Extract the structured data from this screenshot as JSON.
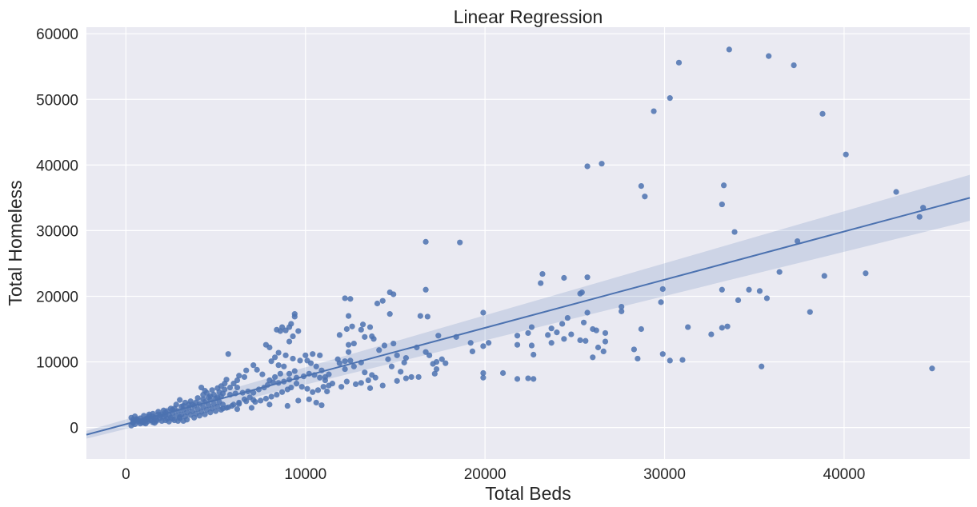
{
  "chart_data": {
    "type": "scatter",
    "title": "Linear Regression",
    "xlabel": "Total Beds",
    "ylabel": "Total Homeless",
    "xlim": [
      -2200,
      47000
    ],
    "ylim": [
      -4800,
      61000
    ],
    "xticks": [
      0,
      10000,
      20000,
      30000,
      40000
    ],
    "yticks": [
      0,
      10000,
      20000,
      30000,
      40000,
      50000,
      60000
    ],
    "grid": true,
    "colors": {
      "background": "#eaeaf2",
      "grid": "#ffffff",
      "points": "#4c72b0",
      "line": "#4c72b0",
      "band": "#4c72b0"
    },
    "regression": {
      "x": [
        -2200,
        47000
      ],
      "y": [
        -1100,
        35000
      ],
      "ci_lower": [
        -1700,
        31500
      ],
      "ci_upper": [
        -500,
        38500
      ]
    },
    "points": [
      [
        26500,
        40200
      ],
      [
        25700,
        39800
      ],
      [
        28700,
        36800
      ],
      [
        28900,
        35200
      ],
      [
        29400,
        48200
      ],
      [
        30300,
        50200
      ],
      [
        30800,
        55600
      ],
      [
        33600,
        57600
      ],
      [
        35800,
        56600
      ],
      [
        37200,
        55200
      ],
      [
        38800,
        47800
      ],
      [
        40100,
        41600
      ],
      [
        42900,
        35900
      ],
      [
        44200,
        32100
      ],
      [
        44400,
        33500
      ],
      [
        44900,
        9000
      ],
      [
        33300,
        36900
      ],
      [
        33200,
        34000
      ],
      [
        33900,
        29800
      ],
      [
        37400,
        28400
      ],
      [
        36400,
        23700
      ],
      [
        38900,
        23100
      ],
      [
        41200,
        23500
      ],
      [
        29900,
        21100
      ],
      [
        33200,
        21000
      ],
      [
        34700,
        21000
      ],
      [
        35300,
        20800
      ],
      [
        35700,
        19700
      ],
      [
        34100,
        19400
      ],
      [
        38100,
        17600
      ],
      [
        29800,
        19100
      ],
      [
        31300,
        15300
      ],
      [
        33200,
        15200
      ],
      [
        33500,
        15400
      ],
      [
        32600,
        14200
      ],
      [
        28700,
        15000
      ],
      [
        29900,
        11200
      ],
      [
        30300,
        10200
      ],
      [
        31000,
        10300
      ],
      [
        28500,
        10500
      ],
      [
        28300,
        11900
      ],
      [
        35400,
        9300
      ],
      [
        16700,
        28300
      ],
      [
        18600,
        28200
      ],
      [
        23200,
        23400
      ],
      [
        23100,
        22000
      ],
      [
        24400,
        22800
      ],
      [
        25700,
        22900
      ],
      [
        25300,
        20400
      ],
      [
        25400,
        20600
      ],
      [
        25700,
        17500
      ],
      [
        27600,
        18400
      ],
      [
        27600,
        17700
      ],
      [
        25500,
        16000
      ],
      [
        26000,
        15000
      ],
      [
        26200,
        14800
      ],
      [
        26700,
        14400
      ],
      [
        24600,
        16700
      ],
      [
        24300,
        15800
      ],
      [
        23700,
        15100
      ],
      [
        24000,
        14500
      ],
      [
        23500,
        14100
      ],
      [
        24800,
        14200
      ],
      [
        25300,
        13300
      ],
      [
        25600,
        13200
      ],
      [
        24400,
        13500
      ],
      [
        23700,
        12900
      ],
      [
        22400,
        14400
      ],
      [
        22600,
        15300
      ],
      [
        22700,
        11100
      ],
      [
        22600,
        12500
      ],
      [
        21800,
        14000
      ],
      [
        21800,
        12600
      ],
      [
        22400,
        7500
      ],
      [
        21800,
        7400
      ],
      [
        21000,
        8300
      ],
      [
        22700,
        7400
      ],
      [
        19900,
        17500
      ],
      [
        19900,
        12400
      ],
      [
        20200,
        12900
      ],
      [
        19300,
        11600
      ],
      [
        19200,
        12900
      ],
      [
        19900,
        8300
      ],
      [
        19900,
        7600
      ],
      [
        26300,
        12200
      ],
      [
        26000,
        10700
      ],
      [
        26600,
        11600
      ],
      [
        26700,
        13100
      ],
      [
        16700,
        21000
      ],
      [
        16800,
        16900
      ],
      [
        16400,
        17000
      ],
      [
        17400,
        14000
      ],
      [
        16700,
        11500
      ],
      [
        16900,
        11000
      ],
      [
        17300,
        10000
      ],
      [
        17100,
        9700
      ],
      [
        17600,
        10400
      ],
      [
        17800,
        9800
      ],
      [
        17300,
        8900
      ],
      [
        17200,
        8200
      ],
      [
        18400,
        13800
      ],
      [
        16200,
        12200
      ],
      [
        15600,
        10600
      ],
      [
        15500,
        9900
      ],
      [
        15100,
        11000
      ],
      [
        15300,
        8500
      ],
      [
        15600,
        7500
      ],
      [
        15900,
        7700
      ],
      [
        16300,
        7700
      ],
      [
        15100,
        7100
      ],
      [
        14800,
        9300
      ],
      [
        14600,
        10400
      ],
      [
        14900,
        12800
      ],
      [
        14400,
        12500
      ],
      [
        14100,
        11800
      ],
      [
        14700,
        20600
      ],
      [
        14900,
        20300
      ],
      [
        14300,
        19300
      ],
      [
        14000,
        18900
      ],
      [
        14700,
        17300
      ],
      [
        12200,
        19700
      ],
      [
        12500,
        19600
      ],
      [
        12400,
        17000
      ],
      [
        11900,
        14100
      ],
      [
        12300,
        15000
      ],
      [
        12600,
        15400
      ],
      [
        13100,
        14900
      ],
      [
        13200,
        15700
      ],
      [
        13600,
        15300
      ],
      [
        13300,
        13800
      ],
      [
        13800,
        13500
      ],
      [
        13700,
        13900
      ],
      [
        12700,
        12800
      ],
      [
        12400,
        12600
      ],
      [
        12400,
        11500
      ],
      [
        11800,
        10400
      ],
      [
        11900,
        9800
      ],
      [
        12200,
        10100
      ],
      [
        12500,
        10200
      ],
      [
        12700,
        9300
      ],
      [
        12200,
        8900
      ],
      [
        13100,
        9900
      ],
      [
        13300,
        8400
      ],
      [
        13700,
        8000
      ],
      [
        13900,
        7600
      ],
      [
        13500,
        7200
      ],
      [
        13100,
        6800
      ],
      [
        14300,
        6400
      ],
      [
        13600,
        6000
      ],
      [
        12800,
        6600
      ],
      [
        12300,
        7000
      ],
      [
        12000,
        6200
      ],
      [
        11500,
        6700
      ],
      [
        11100,
        7200
      ],
      [
        11300,
        8100
      ],
      [
        10900,
        8700
      ],
      [
        10600,
        9300
      ],
      [
        10300,
        9800
      ],
      [
        10100,
        10200
      ],
      [
        10800,
        11000
      ],
      [
        10400,
        11200
      ],
      [
        10000,
        11000
      ],
      [
        9400,
        17300
      ],
      [
        9400,
        16900
      ],
      [
        9200,
        15800
      ],
      [
        9100,
        15300
      ],
      [
        8700,
        15300
      ],
      [
        8600,
        14700
      ],
      [
        8900,
        14800
      ],
      [
        9600,
        14700
      ],
      [
        9300,
        13900
      ],
      [
        9100,
        13100
      ],
      [
        8400,
        14900
      ],
      [
        7800,
        12600
      ],
      [
        8000,
        12200
      ],
      [
        8500,
        11400
      ],
      [
        8900,
        11000
      ],
      [
        8300,
        10700
      ],
      [
        8100,
        10100
      ],
      [
        8500,
        9500
      ],
      [
        8800,
        9300
      ],
      [
        9300,
        10500
      ],
      [
        9700,
        10200
      ],
      [
        9400,
        8600
      ],
      [
        9100,
        8200
      ],
      [
        8600,
        8200
      ],
      [
        8300,
        7700
      ],
      [
        8000,
        7200
      ],
      [
        7600,
        8100
      ],
      [
        7300,
        8800
      ],
      [
        7100,
        9500
      ],
      [
        6700,
        8700
      ],
      [
        6600,
        7700
      ],
      [
        6300,
        7900
      ],
      [
        6200,
        7200
      ],
      [
        5700,
        11200
      ],
      [
        6000,
        6700
      ],
      [
        6200,
        6100
      ],
      [
        5600,
        7300
      ],
      [
        5500,
        6700
      ],
      [
        5300,
        6300
      ],
      [
        5100,
        6000
      ],
      [
        4800,
        5700
      ],
      [
        4500,
        5300
      ],
      [
        4200,
        6100
      ],
      [
        4300,
        5000
      ],
      [
        4700,
        4800
      ],
      [
        5100,
        4600
      ],
      [
        5400,
        5200
      ],
      [
        5800,
        5000
      ],
      [
        6100,
        5200
      ],
      [
        6500,
        5300
      ],
      [
        6800,
        5500
      ],
      [
        7100,
        5300
      ],
      [
        7400,
        5800
      ],
      [
        7700,
        6100
      ],
      [
        7900,
        6500
      ],
      [
        8200,
        6900
      ],
      [
        8500,
        6800
      ],
      [
        8800,
        7000
      ],
      [
        9100,
        7300
      ],
      [
        9500,
        7600
      ],
      [
        9900,
        7800
      ],
      [
        10200,
        8200
      ],
      [
        10500,
        8000
      ],
      [
        10800,
        7600
      ],
      [
        11100,
        7700
      ],
      [
        11300,
        6400
      ],
      [
        11000,
        6200
      ],
      [
        10700,
        5700
      ],
      [
        10400,
        5400
      ],
      [
        10100,
        5900
      ],
      [
        9800,
        6200
      ],
      [
        9500,
        6700
      ],
      [
        9200,
        6100
      ],
      [
        9000,
        5800
      ],
      [
        8700,
        5400
      ],
      [
        8400,
        5000
      ],
      [
        8100,
        4700
      ],
      [
        7800,
        4400
      ],
      [
        7500,
        4100
      ],
      [
        7200,
        3900
      ],
      [
        6900,
        4600
      ],
      [
        6600,
        4300
      ],
      [
        6300,
        3800
      ],
      [
        6000,
        3500
      ],
      [
        5700,
        3100
      ],
      [
        5400,
        2900
      ],
      [
        6200,
        2800
      ],
      [
        7000,
        3000
      ],
      [
        8000,
        3500
      ],
      [
        9000,
        3300
      ],
      [
        9600,
        4100
      ],
      [
        10200,
        4300
      ],
      [
        10600,
        3800
      ],
      [
        10900,
        3400
      ],
      [
        11200,
        5500
      ],
      [
        300,
        300
      ],
      [
        400,
        700
      ],
      [
        500,
        1100
      ],
      [
        300,
        1500
      ],
      [
        400,
        1200
      ],
      [
        500,
        1700
      ],
      [
        600,
        1300
      ],
      [
        700,
        900
      ],
      [
        800,
        600
      ],
      [
        900,
        1000
      ],
      [
        1000,
        700
      ],
      [
        1100,
        1300
      ],
      [
        1200,
        900
      ],
      [
        1300,
        1700
      ],
      [
        1400,
        1100
      ],
      [
        1500,
        800
      ],
      [
        1600,
        1500
      ],
      [
        1700,
        1200
      ],
      [
        1800,
        2000
      ],
      [
        1900,
        1400
      ],
      [
        2000,
        1000
      ],
      [
        2100,
        1700
      ],
      [
        2200,
        2300
      ],
      [
        2300,
        1300
      ],
      [
        2400,
        1900
      ],
      [
        2500,
        1500
      ],
      [
        2600,
        2200
      ],
      [
        2700,
        1100
      ],
      [
        2800,
        1800
      ],
      [
        2900,
        2500
      ],
      [
        3000,
        1400
      ],
      [
        3100,
        2000
      ],
      [
        3200,
        2700
      ],
      [
        3300,
        1700
      ],
      [
        3400,
        2300
      ],
      [
        3500,
        3000
      ],
      [
        3600,
        1900
      ],
      [
        3700,
        2500
      ],
      [
        3800,
        3300
      ],
      [
        3900,
        2100
      ],
      [
        4000,
        2800
      ],
      [
        4100,
        3600
      ],
      [
        4200,
        2400
      ],
      [
        4300,
        3100
      ],
      [
        4400,
        3900
      ],
      [
        4500,
        2700
      ],
      [
        4600,
        3400
      ],
      [
        4700,
        4200
      ],
      [
        4800,
        2900
      ],
      [
        4900,
        3600
      ],
      [
        5000,
        4400
      ],
      [
        5100,
        3200
      ],
      [
        5200,
        3900
      ],
      [
        5300,
        4700
      ],
      [
        5400,
        3500
      ],
      [
        3000,
        4200
      ],
      [
        3300,
        3800
      ],
      [
        3600,
        4000
      ],
      [
        2800,
        3500
      ],
      [
        2500,
        2900
      ],
      [
        2100,
        2600
      ],
      [
        1800,
        2400
      ],
      [
        1500,
        2100
      ],
      [
        1300,
        2000
      ],
      [
        1000,
        1800
      ],
      [
        800,
        1400
      ],
      [
        700,
        1100
      ],
      [
        1200,
        1200
      ],
      [
        1700,
        1000
      ],
      [
        2200,
        1100
      ],
      [
        2600,
        1300
      ],
      [
        3000,
        1600
      ],
      [
        3400,
        1200
      ],
      [
        3800,
        1500
      ],
      [
        4100,
        1800
      ],
      [
        4400,
        2000
      ],
      [
        4700,
        2300
      ],
      [
        5000,
        2500
      ],
      [
        5300,
        2700
      ],
      [
        5600,
        3000
      ],
      [
        5900,
        3300
      ],
      [
        6300,
        3600
      ],
      [
        6700,
        4000
      ],
      [
        7100,
        4200
      ],
      [
        2400,
        900
      ],
      [
        2900,
        1000
      ],
      [
        3200,
        1000
      ],
      [
        1600,
        700
      ],
      [
        1100,
        600
      ],
      [
        900,
        800
      ],
      [
        1400,
        1300
      ],
      [
        2000,
        2000
      ],
      [
        2300,
        2500
      ],
      [
        2700,
        2900
      ],
      [
        3100,
        3200
      ],
      [
        3500,
        3500
      ],
      [
        3900,
        3800
      ],
      [
        4300,
        4300
      ],
      [
        4600,
        4600
      ],
      [
        4900,
        5000
      ],
      [
        5200,
        5400
      ],
      [
        5500,
        5800
      ],
      [
        5800,
        6100
      ],
      [
        4000,
        4500
      ],
      [
        4400,
        5600
      ],
      [
        3700,
        3500
      ],
      [
        3200,
        3300
      ],
      [
        2600,
        2700
      ],
      [
        2200,
        1900
      ],
      [
        1900,
        1800
      ],
      [
        1500,
        1700
      ],
      [
        1200,
        1400
      ],
      [
        1000,
        1100
      ],
      [
        500,
        500
      ],
      [
        400,
        900
      ]
    ]
  }
}
